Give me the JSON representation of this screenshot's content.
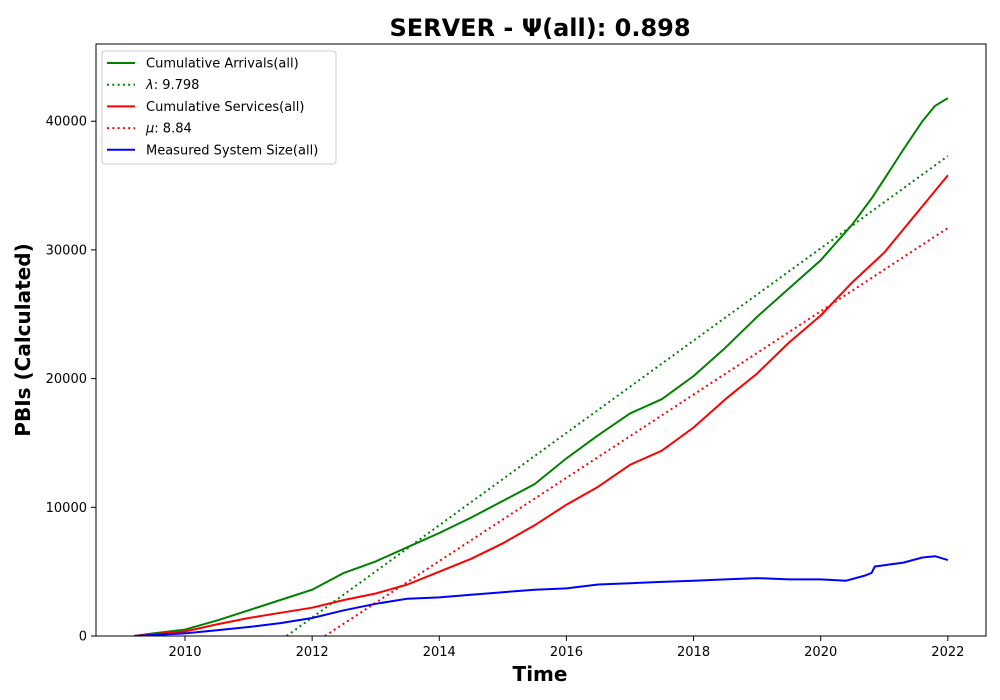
{
  "chart_data": {
    "type": "line",
    "title": "SERVER -  Ψ(all): 0.898",
    "xlabel": "Time",
    "ylabel": "PBIs (Calculated)",
    "xlim": [
      2008.6,
      2022.6
    ],
    "ylim": [
      0,
      46000
    ],
    "xticks": [
      2010,
      2012,
      2014,
      2016,
      2018,
      2020,
      2022
    ],
    "yticks": [
      0,
      10000,
      20000,
      30000,
      40000
    ],
    "grid": false,
    "legend_position": "top-left",
    "series": [
      {
        "name": "Cumulative Arrivals(all)",
        "color": "#008000",
        "style": "solid",
        "x": [
          2009.2,
          2009.5,
          2010.0,
          2010.5,
          2011.0,
          2011.5,
          2012.0,
          2012.5,
          2013.0,
          2013.5,
          2014.0,
          2014.5,
          2015.0,
          2015.5,
          2016.0,
          2016.5,
          2017.0,
          2017.5,
          2018.0,
          2018.5,
          2019.0,
          2019.5,
          2020.0,
          2020.5,
          2020.8,
          2021.0,
          2021.3,
          2021.6,
          2021.8,
          2022.0
        ],
        "y": [
          0,
          200,
          500,
          1200,
          2000,
          2800,
          3600,
          4900,
          5800,
          6900,
          8000,
          9200,
          10500,
          11800,
          13800,
          15600,
          17300,
          18400,
          20200,
          22400,
          24800,
          27000,
          29200,
          32000,
          34000,
          35500,
          37800,
          40000,
          41200,
          41800
        ]
      },
      {
        "name": "λ: 9.798",
        "label_prefix": "λ",
        "label_value": ": 9.798",
        "color": "#008000",
        "style": "dotted",
        "x": [
          2011.6,
          2022.0
        ],
        "y": [
          0,
          37300
        ]
      },
      {
        "name": "Cumulative Services(all)",
        "color": "#ff0000",
        "style": "solid",
        "x": [
          2009.2,
          2009.5,
          2010.0,
          2010.5,
          2011.0,
          2011.5,
          2012.0,
          2012.5,
          2013.0,
          2013.5,
          2014.0,
          2014.5,
          2015.0,
          2015.5,
          2016.0,
          2016.5,
          2017.0,
          2017.5,
          2018.0,
          2018.5,
          2019.0,
          2019.5,
          2020.0,
          2020.5,
          2021.0,
          2021.5,
          2022.0
        ],
        "y": [
          0,
          150,
          350,
          900,
          1400,
          1800,
          2200,
          2800,
          3300,
          4000,
          5000,
          6000,
          7200,
          8600,
          10200,
          11600,
          13300,
          14400,
          16200,
          18400,
          20400,
          22800,
          24900,
          27500,
          29800,
          32800,
          35800
        ]
      },
      {
        "name": "μ: 8.84",
        "label_prefix": "μ",
        "label_value": ": 8.84",
        "color": "#ff0000",
        "style": "dotted",
        "x": [
          2012.2,
          2022.0
        ],
        "y": [
          0,
          31700
        ]
      },
      {
        "name": "Measured System Size(all)",
        "color": "#0000ff",
        "style": "solid",
        "x": [
          2009.2,
          2009.5,
          2010.0,
          2010.5,
          2011.0,
          2011.5,
          2012.0,
          2012.5,
          2013.0,
          2013.5,
          2014.0,
          2014.5,
          2015.0,
          2015.5,
          2016.0,
          2016.5,
          2017.0,
          2017.5,
          2018.0,
          2018.5,
          2019.0,
          2019.5,
          2020.0,
          2020.4,
          2020.7,
          2020.8,
          2020.85,
          2021.0,
          2021.3,
          2021.6,
          2021.8,
          2022.0
        ],
        "y": [
          0,
          80,
          200,
          450,
          700,
          1000,
          1400,
          2000,
          2500,
          2900,
          3000,
          3200,
          3400,
          3600,
          3700,
          4000,
          4100,
          4200,
          4300,
          4400,
          4500,
          4400,
          4400,
          4300,
          4700,
          4900,
          5400,
          5500,
          5700,
          6100,
          6200,
          5900
        ]
      }
    ]
  }
}
